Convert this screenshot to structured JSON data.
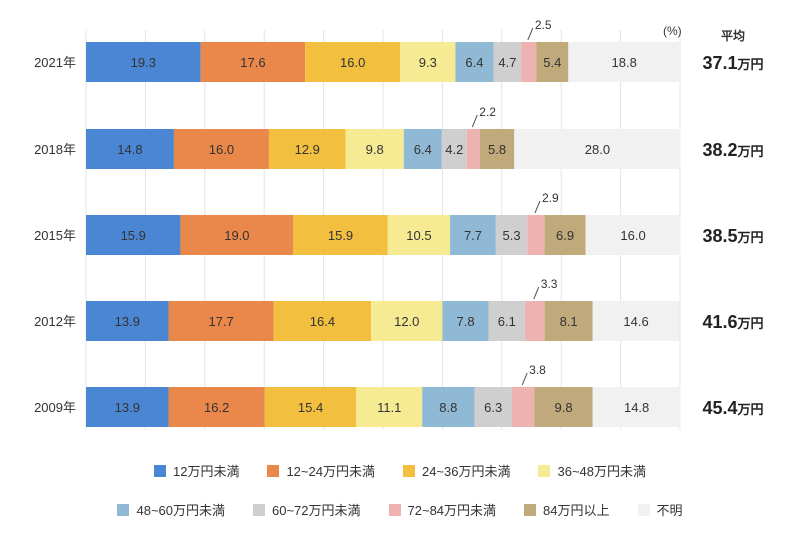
{
  "chart_data": {
    "type": "bar",
    "orientation": "horizontal",
    "stacked": "100%",
    "unit_label": "(%)",
    "average_header": "平均",
    "average_unit": "万円",
    "categories": [
      "2021年",
      "2018年",
      "2015年",
      "2012年",
      "2009年"
    ],
    "averages": [
      "37.1",
      "38.2",
      "38.5",
      "41.6",
      "45.4"
    ],
    "series": [
      {
        "name": "12万円未満",
        "color": "#4a86d3",
        "values": [
          19.3,
          14.8,
          15.9,
          13.9,
          13.9
        ]
      },
      {
        "name": "12~24万円未満",
        "color": "#e9884a",
        "values": [
          17.6,
          16.0,
          19.0,
          17.7,
          16.2
        ]
      },
      {
        "name": "24~36万円未満",
        "color": "#f3bf3f",
        "values": [
          16.0,
          12.9,
          15.9,
          16.4,
          15.4
        ]
      },
      {
        "name": "36~48万円未満",
        "color": "#f6eb92",
        "values": [
          9.3,
          9.8,
          10.5,
          12.0,
          11.1
        ]
      },
      {
        "name": "48~60万円未満",
        "color": "#8fb9d5",
        "values": [
          6.4,
          6.4,
          7.7,
          7.8,
          8.8
        ]
      },
      {
        "name": "60~72万円未満",
        "color": "#cfcfcf",
        "values": [
          4.7,
          4.2,
          5.3,
          6.1,
          6.3
        ]
      },
      {
        "name": "72~84万円未満",
        "color": "#eeb3b0",
        "values": [
          2.5,
          2.2,
          2.9,
          3.3,
          3.8
        ]
      },
      {
        "name": "84万円以上",
        "color": "#c0aa7b",
        "values": [
          5.4,
          5.8,
          6.9,
          8.1,
          9.8
        ]
      },
      {
        "name": "不明",
        "color": "#f1f1f1",
        "values": [
          18.8,
          28.0,
          16.0,
          14.6,
          14.8
        ]
      }
    ],
    "xlim": [
      0,
      100
    ],
    "grid": true,
    "legend_position": "bottom",
    "callout_series_index": 6
  }
}
